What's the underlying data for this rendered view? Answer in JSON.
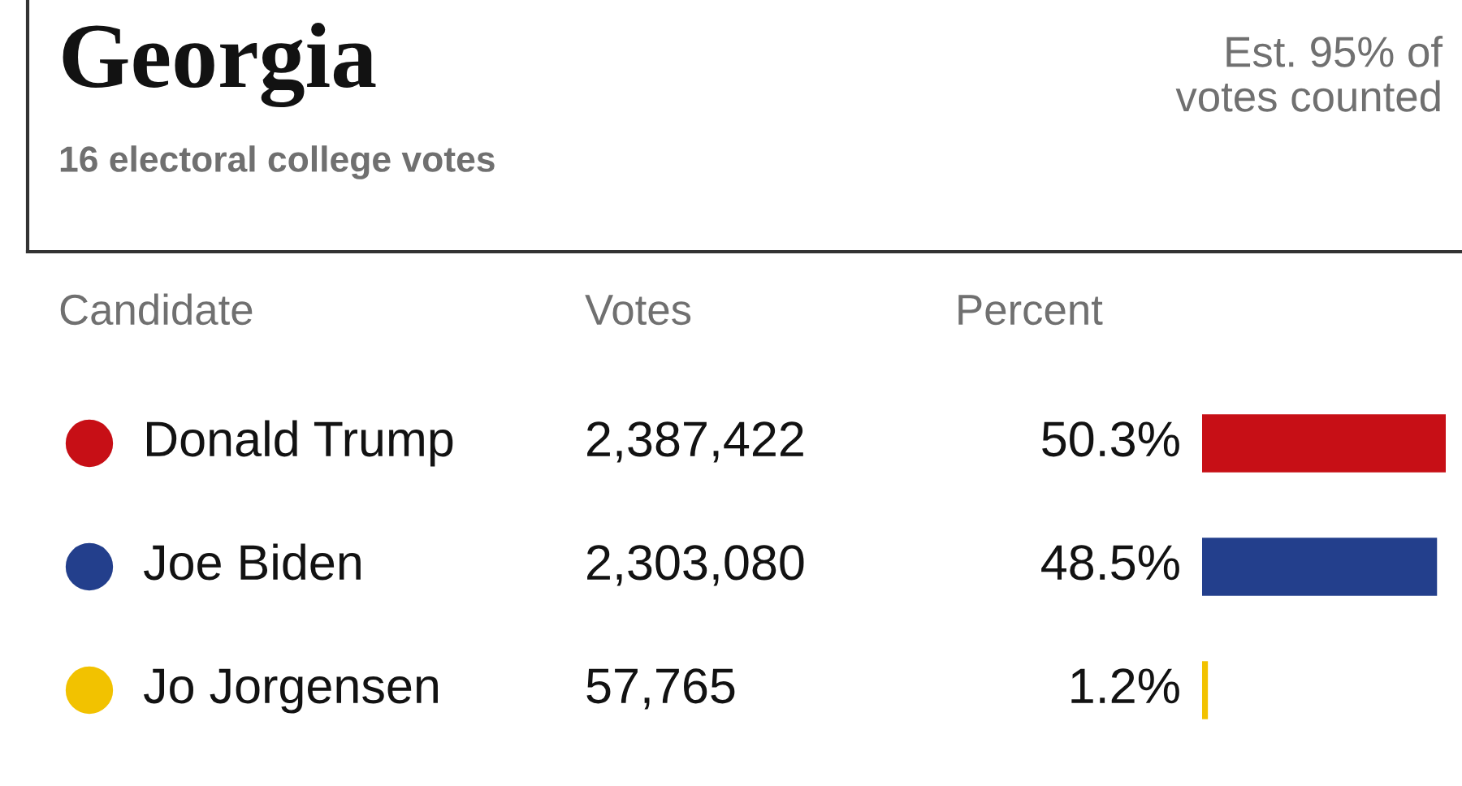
{
  "chart_data": {
    "type": "bar",
    "orientation": "horizontal",
    "title": "Georgia",
    "subtitle": "16 electoral college votes",
    "categories": [
      "Donald Trump",
      "Joe Biden",
      "Jo Jorgensen"
    ],
    "values": [
      50.3,
      48.5,
      1.2
    ],
    "colors": [
      "#c70f16",
      "#233f8c",
      "#f2c200"
    ],
    "value_labels": [
      "50.3%",
      "48.5%",
      "1.2%"
    ],
    "annotations": [
      "Est. 95% of votes counted",
      "Candidate",
      "Votes",
      "Percent",
      "2,387,422",
      "2,303,080",
      "57,765"
    ],
    "stacked": false
  }
}
